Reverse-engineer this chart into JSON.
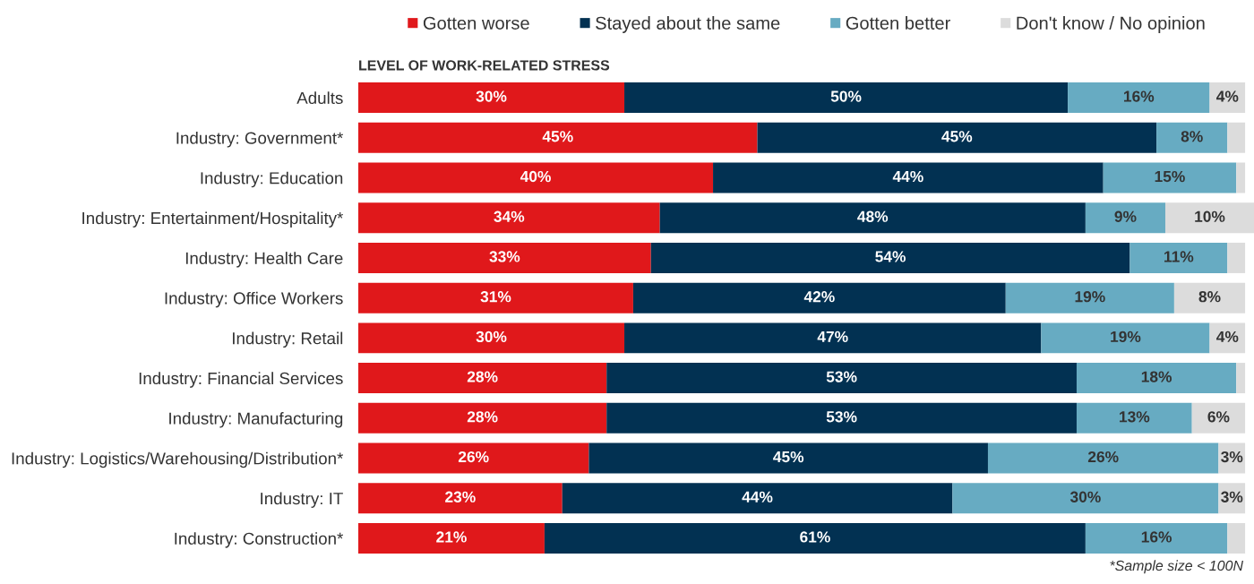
{
  "chart_data": {
    "type": "bar",
    "orientation": "horizontal",
    "stacked": true,
    "title": "LEVEL OF WORK-RELATED STRESS",
    "categories": [
      "Adults",
      "Industry: Government*",
      "Industry: Education",
      "Industry: Entertainment/Hospitality*",
      "Industry: Health Care",
      "Industry: Office Workers",
      "Industry: Retail",
      "Industry: Financial Services",
      "Industry: Manufacturing",
      "Industry: Logistics/Warehousing/Distribution*",
      "Industry: IT",
      "Industry: Construction*"
    ],
    "series": [
      {
        "name": "Gotten worse",
        "color": "#e0181b",
        "values": [
          30,
          45,
          40,
          34,
          33,
          31,
          30,
          28,
          28,
          26,
          23,
          21
        ],
        "value_labels": [
          "30%",
          "45%",
          "40%",
          "34%",
          "33%",
          "31%",
          "30%",
          "28%",
          "28%",
          "26%",
          "23%",
          "21%"
        ]
      },
      {
        "name": "Stayed about the same",
        "color": "#023152",
        "values": [
          50,
          45,
          44,
          48,
          54,
          42,
          47,
          53,
          53,
          45,
          44,
          61
        ],
        "value_labels": [
          "50%",
          "45%",
          "44%",
          "48%",
          "54%",
          "42%",
          "47%",
          "53%",
          "53%",
          "45%",
          "44%",
          "61%"
        ]
      },
      {
        "name": "Gotten better",
        "color": "#67abc2",
        "values": [
          16,
          8,
          15,
          9,
          11,
          19,
          19,
          18,
          13,
          26,
          30,
          16
        ],
        "value_labels": [
          "16%",
          "8%",
          "15%",
          "9%",
          "11%",
          "19%",
          "19%",
          "18%",
          "13%",
          "26%",
          "30%",
          "16%"
        ]
      },
      {
        "name": "Don't know / No opinion",
        "color": "#dcdcdc",
        "values": [
          4,
          2,
          1,
          10,
          2,
          8,
          4,
          1,
          6,
          3,
          3,
          2
        ],
        "value_labels": [
          "4%",
          null,
          null,
          "10%",
          null,
          "8%",
          "4%",
          null,
          "6%",
          "3%",
          "3%",
          null
        ]
      }
    ],
    "legend": "top",
    "tick_labels": "y",
    "annotations": [
      "*Sample size < 100N"
    ]
  }
}
